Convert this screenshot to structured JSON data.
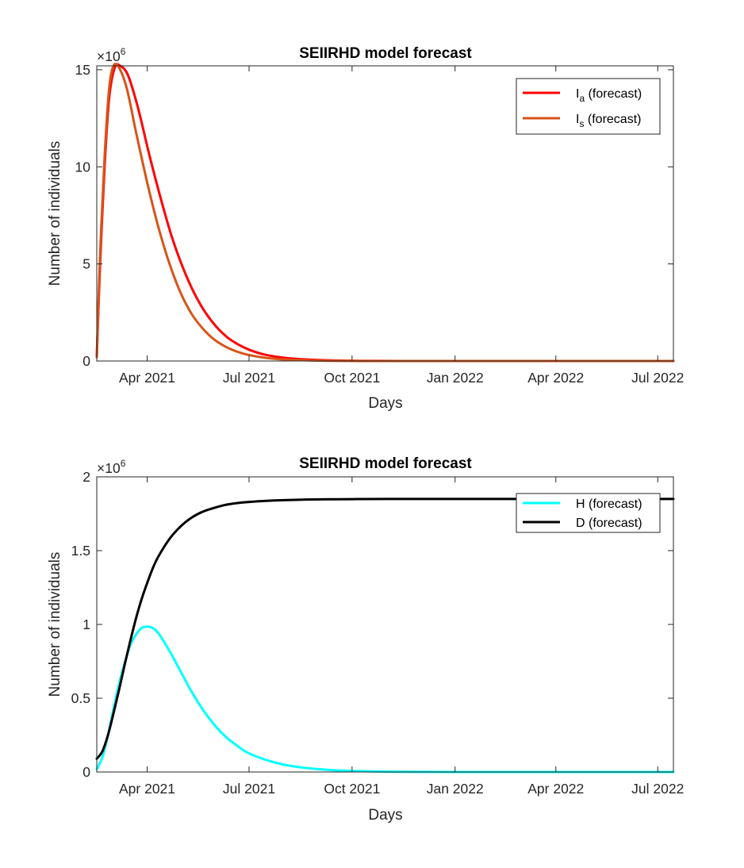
{
  "chart_data": [
    {
      "type": "line",
      "title": "SEIIRHD model forecast",
      "xlabel": "Days",
      "ylabel": "Number of individuals",
      "x_ticks": [
        "Apr 2021",
        "Jul 2021",
        "Oct 2021",
        "Jan 2022",
        "Apr 2022",
        "Jul 2022"
      ],
      "y_ticks": [
        "0",
        "5",
        "10",
        "15"
      ],
      "y_exponent": "×10",
      "y_exponent_power": "6",
      "ylim": [
        0,
        15200000
      ],
      "xlim": [
        "2021-02-15",
        "2022-07-15"
      ],
      "grid": false,
      "legend_position": "top-right",
      "series": [
        {
          "name": "I",
          "name_sub": "a",
          "name_suffix": " (forecast)",
          "color": "#ff0000",
          "x": [
            "2021-02-15",
            "2021-02-18",
            "2021-02-22",
            "2021-02-26",
            "2021-03-03",
            "2021-03-08",
            "2021-03-15",
            "2021-03-24",
            "2021-04-03",
            "2021-04-13",
            "2021-04-23",
            "2021-05-03",
            "2021-05-13",
            "2021-05-23",
            "2021-06-02",
            "2021-06-12",
            "2021-06-22",
            "2021-07-02",
            "2021-07-15",
            "2021-08-04",
            "2021-09-01",
            "2021-10-01",
            "2021-11-01",
            "2022-01-01",
            "2022-04-01",
            "2022-07-15"
          ],
          "y": [
            200000,
            5000000,
            10000000,
            13500000,
            15100000,
            15200000,
            14700000,
            13000000,
            10600000,
            8400000,
            6400000,
            4800000,
            3500000,
            2500000,
            1750000,
            1200000,
            830000,
            560000,
            330000,
            150000,
            50000,
            10000,
            3000,
            0,
            0,
            0
          ]
        },
        {
          "name": "I",
          "name_sub": "s",
          "name_suffix": " (forecast)",
          "color": "#d95319",
          "x": [
            "2021-02-15",
            "2021-02-18",
            "2021-02-22",
            "2021-02-26",
            "2021-03-02",
            "2021-03-07",
            "2021-03-14",
            "2021-03-22",
            "2021-04-01",
            "2021-04-11",
            "2021-04-21",
            "2021-05-01",
            "2021-05-11",
            "2021-05-21",
            "2021-05-31",
            "2021-06-10",
            "2021-06-20",
            "2021-06-30",
            "2021-07-15",
            "2021-08-04",
            "2021-09-01",
            "2021-10-01",
            "2021-11-01",
            "2022-01-01",
            "2022-04-01",
            "2022-07-15"
          ],
          "y": [
            200000,
            5500000,
            10500000,
            14000000,
            15200000,
            15100000,
            14000000,
            11800000,
            9200000,
            6900000,
            5000000,
            3500000,
            2400000,
            1650000,
            1100000,
            740000,
            490000,
            320000,
            170000,
            70000,
            20000,
            5000,
            1000,
            0,
            0,
            0
          ]
        }
      ]
    },
    {
      "type": "line",
      "title": "SEIIRHD model forecast",
      "xlabel": "Days",
      "ylabel": "Number of individuals",
      "x_ticks": [
        "Apr 2021",
        "Jul 2021",
        "Oct 2021",
        "Jan 2022",
        "Apr 2022",
        "Jul 2022"
      ],
      "y_ticks": [
        "0",
        "0.5",
        "1",
        "1.5",
        "2"
      ],
      "y_exponent": "×10",
      "y_exponent_power": "6",
      "ylim": [
        0,
        2000000
      ],
      "xlim": [
        "2021-02-15",
        "2022-07-15"
      ],
      "grid": false,
      "legend_position": "top-right",
      "series": [
        {
          "name": "H",
          "name_sub": "",
          "name_suffix": " (forecast)",
          "color": "#00ffff",
          "x": [
            "2021-02-15",
            "2021-02-20",
            "2021-02-25",
            "2021-03-02",
            "2021-03-07",
            "2021-03-12",
            "2021-03-17",
            "2021-03-22",
            "2021-03-27",
            "2021-04-01",
            "2021-04-06",
            "2021-04-11",
            "2021-04-21",
            "2021-05-01",
            "2021-05-11",
            "2021-05-21",
            "2021-05-31",
            "2021-06-10",
            "2021-06-20",
            "2021-06-30",
            "2021-07-15",
            "2021-08-01",
            "2021-08-20",
            "2021-09-10",
            "2021-10-01",
            "2021-11-01",
            "2022-01-01",
            "2022-04-01",
            "2022-07-15"
          ],
          "y": [
            20000,
            100000,
            250000,
            430000,
            600000,
            740000,
            860000,
            930000,
            975000,
            985000,
            975000,
            940000,
            820000,
            680000,
            540000,
            420000,
            320000,
            240000,
            180000,
            130000,
            85000,
            50000,
            28000,
            14000,
            7000,
            2000,
            0,
            0,
            0
          ]
        },
        {
          "name": "D",
          "name_sub": "",
          "name_suffix": " (forecast)",
          "color": "#000000",
          "x": [
            "2021-02-15",
            "2021-02-20",
            "2021-02-25",
            "2021-03-02",
            "2021-03-07",
            "2021-03-12",
            "2021-03-17",
            "2021-03-22",
            "2021-03-27",
            "2021-04-01",
            "2021-04-06",
            "2021-04-11",
            "2021-04-21",
            "2021-05-01",
            "2021-05-11",
            "2021-05-21",
            "2021-05-31",
            "2021-06-10",
            "2021-06-20",
            "2021-07-01",
            "2021-07-15",
            "2021-08-01",
            "2021-08-20",
            "2021-09-10",
            "2021-10-01",
            "2021-11-01",
            "2022-01-01",
            "2022-04-01",
            "2022-07-15"
          ],
          "y": [
            90000,
            140000,
            250000,
            400000,
            560000,
            730000,
            890000,
            1040000,
            1170000,
            1280000,
            1380000,
            1460000,
            1580000,
            1665000,
            1725000,
            1765000,
            1790000,
            1810000,
            1822000,
            1830000,
            1837000,
            1842000,
            1846000,
            1848000,
            1849000,
            1850000,
            1850000,
            1850000,
            1850000
          ]
        }
      ]
    }
  ]
}
